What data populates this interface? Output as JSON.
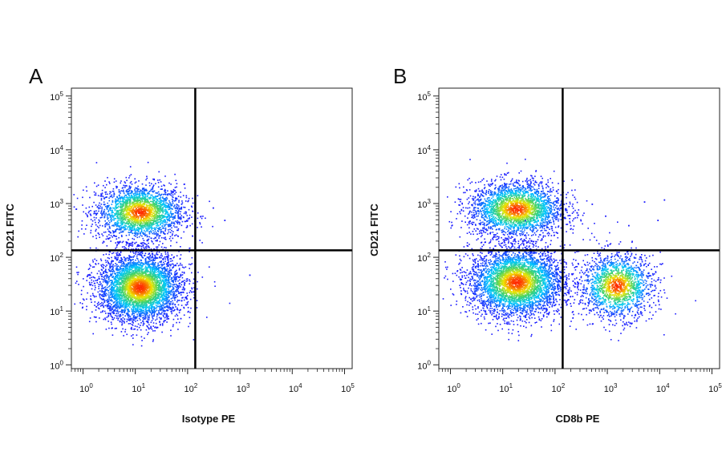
{
  "chart_data": [
    {
      "type": "scatter",
      "panel_label": "A",
      "xlabel": "Isotype PE",
      "ylabel": "CD21 FITC",
      "x_scale": "log",
      "y_scale": "log",
      "xlim": [
        0.6,
        140000
      ],
      "ylim": [
        0.85,
        140000
      ],
      "x_ticks": [
        1,
        10,
        100,
        1000,
        10000,
        100000
      ],
      "y_ticks": [
        1,
        10,
        100,
        1000,
        10000,
        100000
      ],
      "tick_labels": [
        "10^0",
        "10^1",
        "10^2",
        "10^3",
        "10^4",
        "10^5"
      ],
      "quadrant_gate": {
        "x": 140,
        "y": 135
      },
      "color_scale": [
        "#1a1aff",
        "#00c8ff",
        "#3cd26e",
        "#f0e600",
        "#ff2800"
      ],
      "populations": [
        {
          "center": [
            12,
            700
          ],
          "spread": [
            0.42,
            0.26
          ],
          "count": 2400
        },
        {
          "center": [
            12,
            28
          ],
          "spread": [
            0.4,
            0.32
          ],
          "count": 4200
        }
      ],
      "outliers": [
        [
          300,
          850
        ],
        [
          500,
          500
        ],
        [
          1500,
          48
        ]
      ]
    },
    {
      "type": "scatter",
      "panel_label": "B",
      "xlabel": "CD8b PE",
      "ylabel": "CD21 FITC",
      "x_scale": "log",
      "y_scale": "log",
      "xlim": [
        0.6,
        140000
      ],
      "ylim": [
        0.85,
        140000
      ],
      "x_ticks": [
        1,
        10,
        100,
        1000,
        10000,
        100000
      ],
      "y_ticks": [
        1,
        10,
        100,
        1000,
        10000,
        100000
      ],
      "tick_labels": [
        "10^0",
        "10^1",
        "10^2",
        "10^3",
        "10^4",
        "10^5"
      ],
      "quadrant_gate": {
        "x": 140,
        "y": 135
      },
      "color_scale": [
        "#1a1aff",
        "#00c8ff",
        "#3cd26e",
        "#f0e600",
        "#ff2800"
      ],
      "populations": [
        {
          "center": [
            18,
            800
          ],
          "spread": [
            0.45,
            0.26
          ],
          "count": 2600
        },
        {
          "center": [
            18,
            35
          ],
          "spread": [
            0.45,
            0.32
          ],
          "count": 4000
        },
        {
          "center": [
            1500,
            30
          ],
          "spread": [
            0.35,
            0.3
          ],
          "count": 1700
        }
      ],
      "outliers": [
        [
          500,
          1000
        ],
        [
          900,
          600
        ],
        [
          2500,
          400
        ],
        [
          5000,
          1100
        ],
        [
          9000,
          500
        ],
        [
          12000,
          1200
        ]
      ]
    }
  ]
}
